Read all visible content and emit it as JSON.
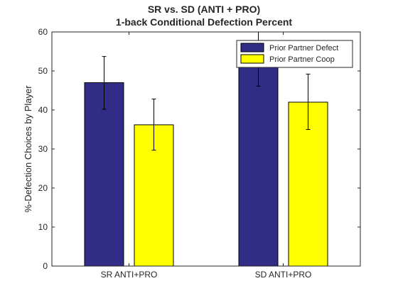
{
  "chart_data": {
    "type": "bar",
    "title": "SR vs. SD (ANTI + PRO)",
    "subtitle": "1-back Conditional Defection Percent",
    "xlabel": "",
    "ylabel": "%-Defection Choices by Player",
    "ylim": [
      0,
      60
    ],
    "yticks": [
      0,
      10,
      20,
      30,
      40,
      50,
      60
    ],
    "grid": false,
    "legend_position": "top-right",
    "categories": [
      "SR ANTI+PRO",
      "SD ANTI+PRO"
    ],
    "series": [
      {
        "name": "Prior Partner Defect",
        "color": "#312c86",
        "values": [
          47,
          55
        ],
        "error_low": [
          40.2,
          46.1
        ],
        "error_high": [
          53.7,
          60
        ]
      },
      {
        "name": "Prior Partner Coop",
        "color": "#ffff00",
        "values": [
          36.2,
          42
        ],
        "error_low": [
          29.7,
          35
        ],
        "error_high": [
          42.8,
          49.2
        ]
      }
    ]
  }
}
